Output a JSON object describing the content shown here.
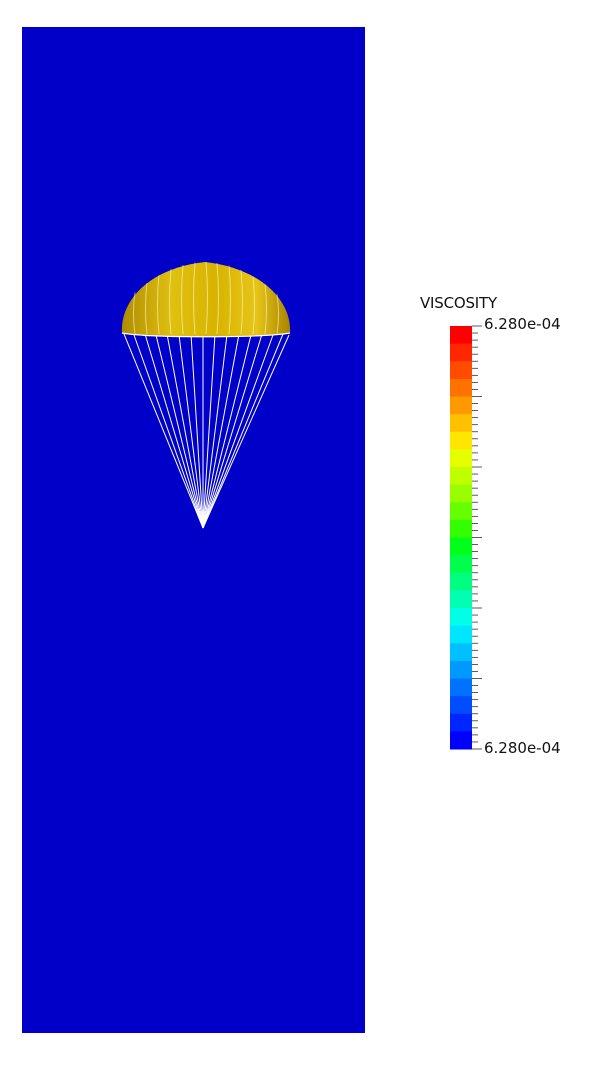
{
  "scene": {
    "background_color": "#0000c8",
    "canopy_color": "#d4b000",
    "line_color": "#ffffff",
    "object_icon": "parachute-icon"
  },
  "legend": {
    "title": "VISCOSITY",
    "max_label": "6.280e-04",
    "min_label": "6.280e-04",
    "colors": [
      "#ff0000",
      "#ff2600",
      "#ff4c00",
      "#ff7200",
      "#ff9900",
      "#ffc000",
      "#ffe600",
      "#e6ff00",
      "#c0ff00",
      "#99ff00",
      "#66ff00",
      "#33ff00",
      "#00ff19",
      "#00ff4c",
      "#00ff80",
      "#00ffb3",
      "#00ffe6",
      "#00e6ff",
      "#00c0ff",
      "#0099ff",
      "#0072ff",
      "#004cff",
      "#0026ff",
      "#0000ff"
    ]
  }
}
